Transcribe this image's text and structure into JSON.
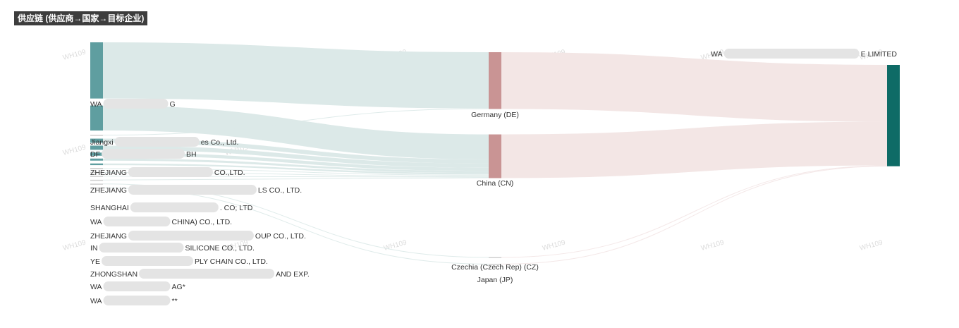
{
  "title": "供应链 (供应商→国家→目标企业)",
  "watermark": "WH109",
  "colors": {
    "supplier_node": "#5f9ea0",
    "country_node": "#c99494",
    "target_node": "#0e6b66",
    "supplier_link": "#dce9e8",
    "country_link": "#f3e6e5",
    "blur": "#e4e4e4",
    "label": "#333333"
  },
  "chart_data": {
    "type": "sankey",
    "title": "供应链 (供应商→国家→目标企业)",
    "nodes": [
      {
        "id": "s1",
        "layer": 0,
        "label_pre": "WA",
        "label_post": "G",
        "value": 27
      },
      {
        "id": "s2",
        "layer": 0,
        "label_pre": "",
        "label_post": "",
        "value": 12
      },
      {
        "id": "s3",
        "layer": 0,
        "label_pre": "Jiangxi",
        "label_post": "es Co., Ltd.",
        "value": 0.3
      },
      {
        "id": "s4",
        "layer": 0,
        "label_pre": "DF",
        "label_post": "BH",
        "value": 2
      },
      {
        "id": "s5",
        "layer": 0,
        "label_pre": "ZHEJIANG",
        "label_post": "CO.,LTD.",
        "value": 2
      },
      {
        "id": "s6",
        "layer": 0,
        "label_pre": "ZHEJIANG",
        "label_post": "LS CO., LTD.",
        "value": 1.5
      },
      {
        "id": "s7",
        "layer": 0,
        "label_pre": "SHANGHAI",
        "label_post": ". CO; LTD",
        "value": 1
      },
      {
        "id": "s8",
        "layer": 0,
        "label_pre": "WA",
        "label_post": "CHINA) CO., LTD.",
        "value": 0.8
      },
      {
        "id": "s9",
        "layer": 0,
        "label_pre": "ZHEJIANG",
        "label_post": "OUP CO., LTD.",
        "value": 0.6
      },
      {
        "id": "s10",
        "layer": 0,
        "label_pre": "IN",
        "label_post": "SILICONE CO., LTD.",
        "value": 0.5
      },
      {
        "id": "s11",
        "layer": 0,
        "label_pre": "YE",
        "label_post": "PLY CHAIN CO., LTD.",
        "value": 0.3
      },
      {
        "id": "s12",
        "layer": 0,
        "label_pre": "ZHONGSHAN",
        "label_post": "AND EXP.",
        "value": 0.3
      },
      {
        "id": "s13",
        "layer": 0,
        "label_pre": "WA",
        "label_post": "AG*",
        "value": 0.2
      },
      {
        "id": "s14",
        "layer": 0,
        "label_pre": "WA",
        "label_post": "**",
        "value": 0.2
      },
      {
        "id": "de",
        "layer": 1,
        "label_pre": "Germany (DE)",
        "label_post": "",
        "value": 27.3
      },
      {
        "id": "cn",
        "layer": 1,
        "label_pre": "China (CN)",
        "label_post": "",
        "value": 21
      },
      {
        "id": "cz",
        "layer": 1,
        "label_pre": "Czechia  (Czech Rep)   (CZ)",
        "label_post": "",
        "value": 0.2
      },
      {
        "id": "jp",
        "layer": 1,
        "label_pre": "Japan (JP)",
        "label_post": "",
        "value": 0.2
      },
      {
        "id": "t1",
        "layer": 2,
        "label_pre": "WA",
        "label_post": "E LIMITED",
        "value": 48.7
      }
    ],
    "links": [
      {
        "source": "s1",
        "target": "de",
        "value": 27
      },
      {
        "source": "s2",
        "target": "cn",
        "value": 12
      },
      {
        "source": "s3",
        "target": "de",
        "value": 0.3
      },
      {
        "source": "s4",
        "target": "cn",
        "value": 2
      },
      {
        "source": "s5",
        "target": "cn",
        "value": 2
      },
      {
        "source": "s6",
        "target": "cn",
        "value": 1.5
      },
      {
        "source": "s7",
        "target": "cn",
        "value": 1
      },
      {
        "source": "s8",
        "target": "cn",
        "value": 0.8
      },
      {
        "source": "s9",
        "target": "cn",
        "value": 0.6
      },
      {
        "source": "s10",
        "target": "cn",
        "value": 0.5
      },
      {
        "source": "s11",
        "target": "cn",
        "value": 0.3
      },
      {
        "source": "s12",
        "target": "cn",
        "value": 0.3
      },
      {
        "source": "s13",
        "target": "cz",
        "value": 0.2
      },
      {
        "source": "s14",
        "target": "jp",
        "value": 0.2
      },
      {
        "source": "de",
        "target": "t1",
        "value": 27.3
      },
      {
        "source": "cn",
        "target": "t1",
        "value": 21
      },
      {
        "source": "cz",
        "target": "t1",
        "value": 0.2
      },
      {
        "source": "jp",
        "target": "t1",
        "value": 0.2
      }
    ]
  }
}
